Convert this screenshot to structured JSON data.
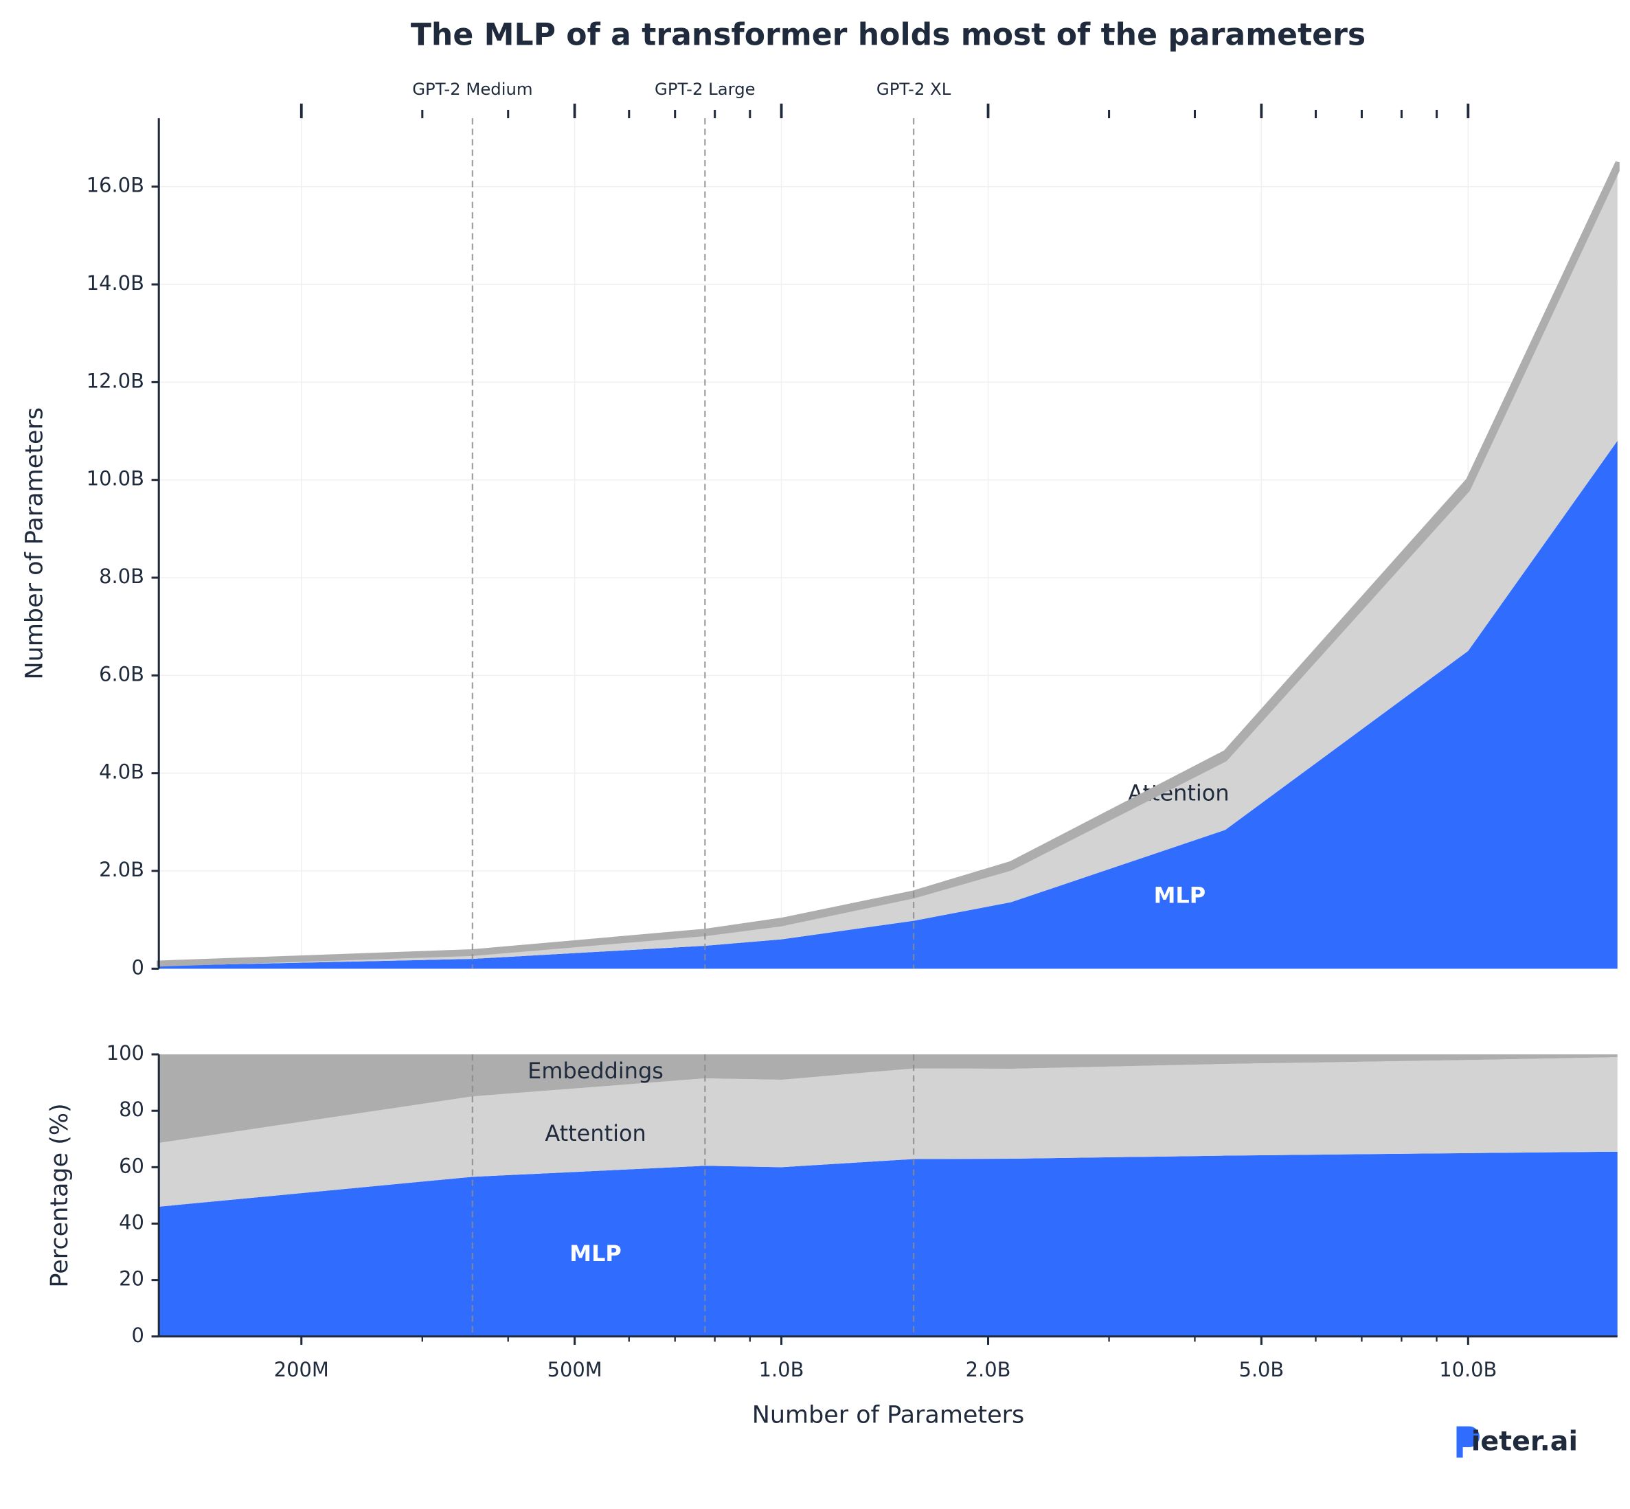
{
  "chart_data": [
    {
      "type": "area",
      "stacked": true,
      "title": "The MLP of a transformer holds most of the parameters",
      "ylabel": "Number of Parameters",
      "grid": true,
      "xscale": "log",
      "x": [
        124000000,
        355000000,
        774000000,
        1000000000,
        1558000000,
        2160000000,
        4430000000,
        10000000000,
        16500000000
      ],
      "series": [
        {
          "name": "MLP",
          "color": "#306dff",
          "values": [
            57000000,
            201000000,
            468000000,
            600000000,
            980000000,
            1360000000,
            2840000000,
            6500000000,
            10800000000
          ]
        },
        {
          "name": "Attention",
          "color": "#d3d3d3",
          "values": [
            28000000,
            101000000,
            240000000,
            310000000,
            500000000,
            690000000,
            1440000000,
            3300000000,
            5530000000
          ]
        },
        {
          "color": "#adadad",
          "values": [
            39000000,
            53000000,
            66000000,
            90000000,
            78000000,
            110000000,
            150000000,
            200000000,
            170000000
          ]
        }
      ],
      "xlim": [
        124000000,
        16500000000
      ],
      "ylim": [
        0,
        17400000000
      ],
      "yticks": [
        0,
        {
          "value": 2000000000,
          "label": "2.0B"
        },
        {
          "value": 4000000000,
          "label": "4.0B"
        },
        {
          "value": 6000000000,
          "label": "6.0B"
        },
        {
          "value": 8000000000,
          "label": "8.0B"
        },
        {
          "value": 10000000000,
          "label": "10.0B"
        },
        {
          "value": 12000000000,
          "label": "12.0B"
        },
        {
          "value": 14000000000,
          "label": "14.0B"
        },
        {
          "value": 16000000000,
          "label": "16.0B"
        }
      ],
      "vlines": [
        {
          "x": 355000000,
          "label": "GPT-2 Medium"
        },
        {
          "x": 774000000,
          "label": "GPT-2 Large"
        },
        {
          "x": 1558000000,
          "label": "GPT-2 XL"
        }
      ]
    },
    {
      "type": "area",
      "stacked": true,
      "xlabel": "Number of Parameters",
      "ylabel": "Percentage (%)",
      "xscale": "log",
      "x": [
        124000000,
        355000000,
        774000000,
        1000000000,
        1558000000,
        2160000000,
        4430000000,
        10000000000,
        16500000000
      ],
      "series": [
        {
          "name": "MLP",
          "color": "#306dff",
          "values": [
            46,
            56.6,
            60.5,
            60,
            62.9,
            63,
            64.1,
            65,
            65.5
          ]
        },
        {
          "name": "Attention",
          "color": "#d3d3d3",
          "values": [
            22.6,
            28.5,
            31,
            31,
            32.1,
            31.9,
            32.5,
            33,
            33.5
          ]
        },
        {
          "name": "Embeddings",
          "color": "#adadad",
          "values": [
            31.4,
            14.9,
            8.5,
            9,
            5,
            5.1,
            3.4,
            2,
            1
          ]
        }
      ],
      "xlim": [
        124000000,
        16500000000
      ],
      "ylim": [
        0,
        100
      ],
      "yticks": [
        0,
        20,
        40,
        60,
        80,
        100
      ],
      "xticks": [
        {
          "value": 200000000,
          "label": "200M"
        },
        {
          "value": 500000000,
          "label": "500M"
        },
        {
          "value": 1000000000,
          "label": "1.0B"
        },
        {
          "value": 2000000000,
          "label": "2.0B"
        },
        {
          "value": 5000000000,
          "label": "5.0B"
        },
        {
          "value": 10000000000,
          "label": "10.0B"
        }
      ],
      "xminor": [
        300000000,
        400000000,
        600000000,
        700000000,
        800000000,
        900000000,
        3000000000,
        4000000000,
        6000000000,
        7000000000,
        8000000000,
        9000000000
      ]
    }
  ],
  "logo": "ieter.ai"
}
